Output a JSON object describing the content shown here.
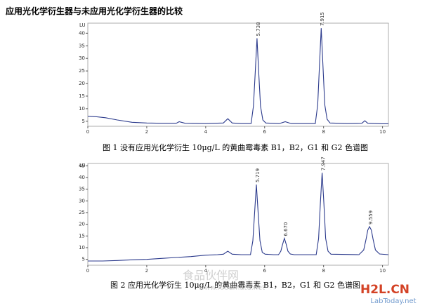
{
  "heading": "应用光化学衍生器与未应用光化学衍生器的比较",
  "chart_data": [
    {
      "type": "line",
      "caption": "图 1  没有应用光化学衍生 10μg/L 的黄曲霉毒素 B1，B2，G1 和 G2 色谱图",
      "y_label": "LU",
      "color": "#2b3a8c",
      "xlim": [
        0,
        10.2
      ],
      "ylim": [
        3,
        44
      ],
      "xticks": [
        0,
        2,
        4,
        6,
        8,
        10
      ],
      "yticks": [
        5,
        10,
        15,
        20,
        25,
        30,
        35,
        40
      ],
      "x": [
        0,
        0.3,
        0.6,
        1,
        1.5,
        2,
        2.5,
        3,
        3.1,
        3.3,
        4,
        4.6,
        4.75,
        4.9,
        5.2,
        5.54,
        5.62,
        5.68,
        5.74,
        5.8,
        5.86,
        5.94,
        6.04,
        6.5,
        6.7,
        6.9,
        7.72,
        7.8,
        7.86,
        7.92,
        7.98,
        8.04,
        8.12,
        8.22,
        8.8,
        9.3,
        9.4,
        9.5,
        10,
        10.2
      ],
      "series": [
        {
          "values": [
            7,
            6.8,
            6.4,
            5.5,
            4.6,
            4.3,
            4.2,
            4.2,
            4.8,
            4.2,
            4.1,
            4.3,
            6,
            4.3,
            4.1,
            4.1,
            11,
            24,
            38,
            24,
            11,
            5.5,
            4.3,
            4.1,
            4.8,
            4.1,
            4.1,
            11.5,
            27,
            42,
            27,
            11.5,
            5.8,
            4.3,
            4.1,
            4.2,
            5.2,
            4.2,
            4,
            4
          ]
        }
      ],
      "peak_labels": [
        {
          "value": 5.738,
          "label": "5.738"
        },
        {
          "value": 7.915,
          "label": "7.915"
        }
      ]
    },
    {
      "type": "line",
      "caption": "图 2  应用光化学衍生 10μg/L 的黄曲霉毒素 B1，B2，G1 和 G2 色谱图",
      "y_label": "LU",
      "color": "#2b3a8c",
      "xlim": [
        0,
        10.2
      ],
      "ylim": [
        2.5,
        46
      ],
      "xticks": [
        0,
        2,
        4,
        6,
        8,
        10
      ],
      "yticks": [
        5,
        10,
        15,
        20,
        25,
        30,
        35,
        40,
        45
      ],
      "x": [
        0,
        0.5,
        1,
        1.5,
        2,
        2.5,
        3,
        3.5,
        4,
        4.4,
        4.6,
        4.75,
        4.9,
        5.2,
        5.52,
        5.6,
        5.66,
        5.72,
        5.78,
        5.84,
        5.92,
        6.02,
        6.3,
        6.47,
        6.55,
        6.61,
        6.67,
        6.73,
        6.79,
        6.87,
        7.0,
        7.75,
        7.83,
        7.89,
        7.95,
        8.01,
        8.07,
        8.15,
        8.25,
        9.2,
        9.36,
        9.44,
        9.5,
        9.56,
        9.62,
        9.68,
        9.76,
        9.9,
        10.2
      ],
      "series": [
        {
          "values": [
            4.3,
            4.3,
            4.5,
            4.8,
            5,
            5.4,
            5.8,
            6.2,
            6.8,
            7,
            7.2,
            8.5,
            7.2,
            7,
            7,
            13,
            25,
            37,
            25,
            13,
            8,
            7.2,
            7,
            7,
            8.5,
            11.5,
            14,
            11.5,
            8.5,
            7.3,
            7,
            7,
            14,
            29,
            42,
            29,
            14,
            8.5,
            7.2,
            7,
            9,
            13.5,
            17.5,
            19,
            17.5,
            13.5,
            9,
            7.3,
            7
          ]
        }
      ],
      "peak_labels": [
        {
          "value": 5.719,
          "label": "5.719"
        },
        {
          "value": 6.67,
          "label": "6.670"
        },
        {
          "value": 7.947,
          "label": "7.947"
        },
        {
          "value": 9.559,
          "label": "9.559"
        }
      ]
    }
  ],
  "watermarks": [
    "食品伙伴网",
    "www.foodmate.net",
    "H2L.CN",
    "LabToday.net"
  ]
}
